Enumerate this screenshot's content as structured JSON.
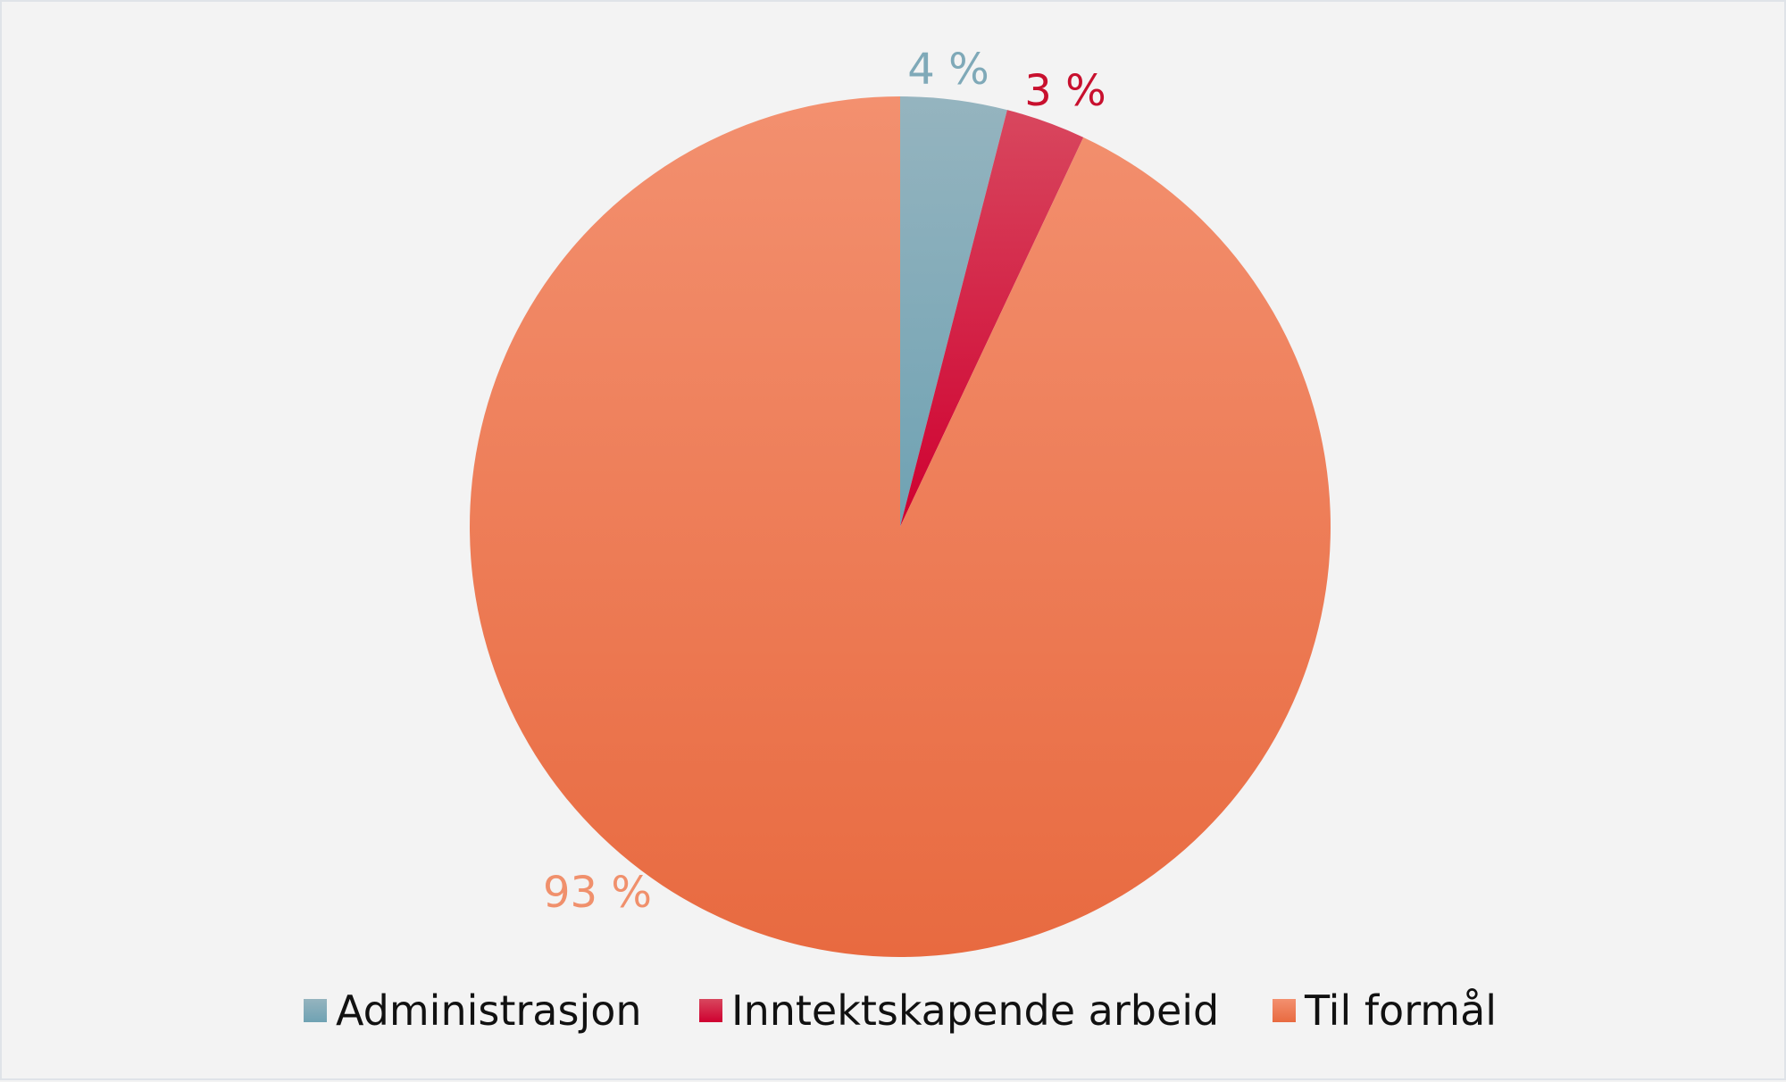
{
  "chart_data": {
    "type": "pie",
    "title": "",
    "start_angle_deg": 0,
    "direction": "clockwise",
    "legend_position": "bottom",
    "slices": [
      {
        "name": "Administrasjon",
        "value": 4,
        "label": "4 %",
        "color": "#7fa9b8",
        "label_color": "#7fa9b8"
      },
      {
        "name": "Inntektskapende arbeid",
        "value": 3,
        "label": "3 %",
        "color": "#d3103a",
        "label_color": "#c8102e"
      },
      {
        "name": "Til formål",
        "value": 93,
        "label": "93 %",
        "color": "#f07f58",
        "label_color": "#f0906c"
      }
    ]
  }
}
